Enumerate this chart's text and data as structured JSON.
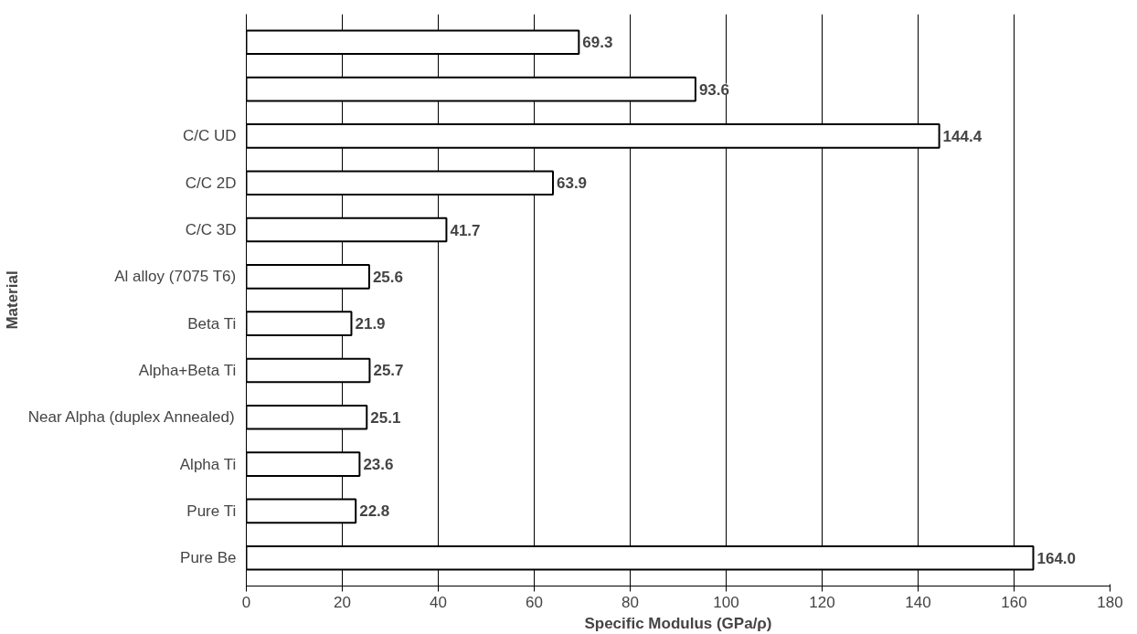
{
  "chart_data": {
    "type": "bar",
    "orientation": "horizontal",
    "xlabel": "Specific Modulus (GPa/ρ)",
    "ylabel": "Material",
    "categories": [
      null,
      null,
      "C/C UD",
      "C/C 2D",
      "C/C 3D",
      "Al alloy (7075 T6)",
      "Beta Ti",
      "Alpha+Beta Ti",
      "Near Alpha (duplex Annealed)",
      "Alpha Ti",
      "Pure Ti",
      "Pure Be"
    ],
    "values": [
      69.3,
      93.6,
      144.4,
      63.9,
      41.7,
      25.6,
      21.9,
      25.7,
      25.1,
      23.6,
      22.8,
      164.0
    ],
    "value_labels": [
      "69.3",
      "93.6",
      "144.4",
      "63.9",
      "41.7",
      "25.6",
      "21.9",
      "25.7",
      "25.1",
      "23.6",
      "22.8",
      "164.0"
    ],
    "color": "#ffffff",
    "xlim": [
      0,
      180
    ],
    "xticks": [
      0,
      20,
      40,
      60,
      80,
      100,
      120,
      140,
      160,
      180
    ],
    "grid": "x"
  }
}
